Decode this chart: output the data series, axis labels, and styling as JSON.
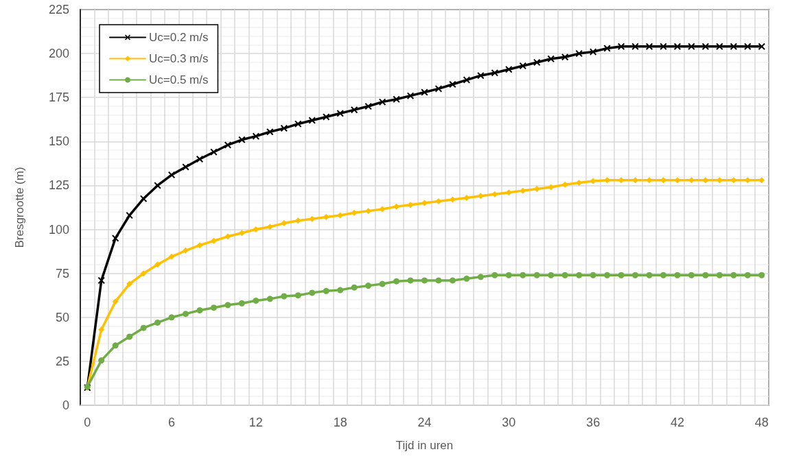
{
  "chart_data": {
    "type": "line",
    "xlabel": "Tijd in uren",
    "ylabel": "Bresgrootte (m)",
    "categories": [
      "0",
      null,
      null,
      null,
      null,
      null,
      "6",
      null,
      null,
      null,
      null,
      null,
      "12",
      null,
      null,
      null,
      null,
      null,
      "18",
      null,
      null,
      null,
      null,
      null,
      "24",
      null,
      null,
      null,
      null,
      null,
      "30",
      null,
      null,
      null,
      null,
      null,
      "36",
      null,
      null,
      null,
      null,
      null,
      "42",
      null,
      null,
      null,
      null,
      null,
      "48"
    ],
    "series": [
      {
        "name": "Uc=0.2 m/s",
        "color": "#000000",
        "marker": "cross",
        "values": [
          10,
          71,
          95,
          108,
          117.5,
          125,
          131,
          135.5,
          140,
          144,
          148,
          151,
          153,
          155.5,
          157.5,
          160,
          162,
          164,
          166,
          168,
          170,
          172.5,
          174,
          176,
          178,
          180,
          182.5,
          185,
          187.5,
          189,
          191,
          193,
          195,
          197,
          198,
          200,
          201,
          203,
          204,
          204,
          204,
          204,
          204,
          204,
          204,
          204,
          204,
          204,
          204
        ]
      },
      {
        "name": "Uc=0.3 m/s",
        "color": "#ffc000",
        "marker": "diamond",
        "values": [
          10,
          43,
          59,
          69,
          75,
          80,
          84.5,
          88,
          91,
          93.5,
          96,
          98,
          100,
          101.5,
          103.5,
          105,
          106,
          107,
          108,
          109.5,
          110.5,
          111.5,
          113,
          114,
          115,
          116,
          117,
          118,
          119,
          120,
          121,
          122,
          123,
          124,
          125.5,
          126.5,
          127.5,
          128,
          128,
          128,
          128,
          128,
          128,
          128,
          128,
          128,
          128,
          128,
          128
        ]
      },
      {
        "name": "Uc=0.5 m/s",
        "color": "#70ad47",
        "marker": "circle",
        "values": [
          10.5,
          25.5,
          34,
          39,
          44,
          47,
          50,
          52,
          54,
          55.5,
          57,
          58,
          59.5,
          60.5,
          62,
          62.5,
          64,
          65,
          65.5,
          67,
          68,
          69,
          70.5,
          71,
          71,
          71,
          71,
          72,
          73,
          74,
          74,
          74,
          74,
          74,
          74,
          74,
          74,
          74,
          74,
          74,
          74,
          74,
          74,
          74,
          74,
          74,
          74,
          74,
          74
        ]
      }
    ],
    "ylim": [
      0,
      225
    ],
    "yticks": [
      0,
      25,
      50,
      75,
      100,
      125,
      150,
      175,
      200,
      225
    ],
    "grid": true,
    "legend": "top left",
    "line_style": "solid"
  }
}
